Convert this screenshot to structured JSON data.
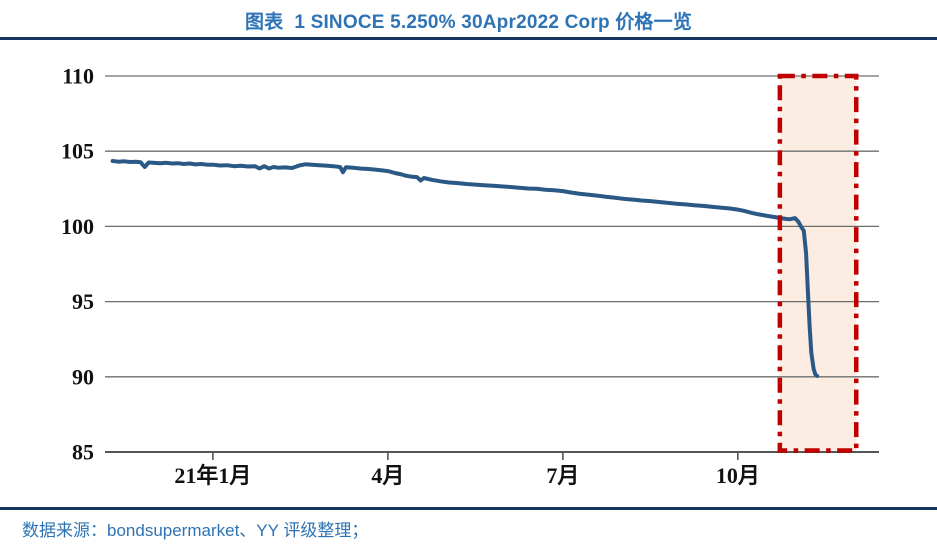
{
  "header": {
    "title": "图表  1 SINOCE 5.250% 30Apr2022 Corp 价格一览"
  },
  "footer": {
    "source_note": "数据来源：bondsupermarket、YY 评级整理；"
  },
  "colors": {
    "accent_blue": "#2E74B5",
    "rule_navy": "#17365D",
    "line_blue": "#2B5985",
    "grid_gray": "#6E6E6E",
    "axis_gray": "#555555",
    "highlight_fill": "#FBEDE2",
    "highlight_border": "#C00000",
    "tick_label_black": "#111111"
  },
  "chart_data": {
    "type": "line",
    "title": "SINOCE 5.250% 30Apr2022 Corp 价格一览",
    "xlabel": "",
    "ylabel": "",
    "ylim": [
      85,
      110
    ],
    "y_ticks": [
      110,
      105,
      100,
      95,
      90,
      85
    ],
    "grid": "horizontal-only",
    "legend": "none",
    "x_unit": "months since 2021-01-01",
    "x_range_months": [
      -1.85,
      11.42
    ],
    "x_ticks": [
      {
        "m": 0,
        "label": "21年1月"
      },
      {
        "m": 3,
        "label": "4月"
      },
      {
        "m": 6,
        "label": "7月"
      },
      {
        "m": 9,
        "label": "10月"
      }
    ],
    "highlight_box": {
      "x0_m": 9.72,
      "x1_m": 11.03,
      "y0": 85.1,
      "y1": 110,
      "style": "dash-dot",
      "meaning": "price collapse window (late Oct - Nov 2021)"
    },
    "series": [
      {
        "name": "SINOCE 5.250% 30Apr2022 Corp price",
        "points": [
          [
            -1.72,
            104.35
          ],
          [
            -1.62,
            104.3
          ],
          [
            -1.52,
            104.33
          ],
          [
            -1.42,
            104.28
          ],
          [
            -1.32,
            104.3
          ],
          [
            -1.24,
            104.27
          ],
          [
            -1.17,
            103.95
          ],
          [
            -1.1,
            104.25
          ],
          [
            -1.0,
            104.22
          ],
          [
            -0.9,
            104.2
          ],
          [
            -0.8,
            104.23
          ],
          [
            -0.7,
            104.18
          ],
          [
            -0.6,
            104.2
          ],
          [
            -0.5,
            104.15
          ],
          [
            -0.4,
            104.18
          ],
          [
            -0.3,
            104.12
          ],
          [
            -0.2,
            104.15
          ],
          [
            -0.1,
            104.1
          ],
          [
            0.0,
            104.1
          ],
          [
            0.12,
            104.05
          ],
          [
            0.24,
            104.07
          ],
          [
            0.36,
            104.0
          ],
          [
            0.48,
            104.03
          ],
          [
            0.6,
            103.98
          ],
          [
            0.72,
            104.0
          ],
          [
            0.8,
            103.85
          ],
          [
            0.88,
            104.0
          ],
          [
            0.96,
            103.85
          ],
          [
            1.04,
            103.95
          ],
          [
            1.12,
            103.9
          ],
          [
            1.24,
            103.92
          ],
          [
            1.36,
            103.88
          ],
          [
            1.48,
            104.05
          ],
          [
            1.58,
            104.13
          ],
          [
            1.7,
            104.1
          ],
          [
            1.82,
            104.07
          ],
          [
            1.94,
            104.04
          ],
          [
            2.06,
            104.0
          ],
          [
            2.18,
            103.95
          ],
          [
            2.23,
            103.6
          ],
          [
            2.28,
            103.93
          ],
          [
            2.4,
            103.9
          ],
          [
            2.52,
            103.85
          ],
          [
            2.64,
            103.82
          ],
          [
            2.76,
            103.78
          ],
          [
            2.88,
            103.74
          ],
          [
            3.0,
            103.68
          ],
          [
            3.12,
            103.55
          ],
          [
            3.24,
            103.45
          ],
          [
            3.3,
            103.38
          ],
          [
            3.42,
            103.3
          ],
          [
            3.5,
            103.28
          ],
          [
            3.56,
            103.05
          ],
          [
            3.62,
            103.22
          ],
          [
            3.75,
            103.1
          ],
          [
            3.9,
            103.0
          ],
          [
            4.05,
            102.92
          ],
          [
            4.2,
            102.88
          ],
          [
            4.35,
            102.82
          ],
          [
            4.5,
            102.78
          ],
          [
            4.65,
            102.73
          ],
          [
            4.8,
            102.7
          ],
          [
            4.95,
            102.66
          ],
          [
            5.1,
            102.62
          ],
          [
            5.25,
            102.57
          ],
          [
            5.4,
            102.52
          ],
          [
            5.55,
            102.5
          ],
          [
            5.7,
            102.44
          ],
          [
            5.85,
            102.4
          ],
          [
            6.0,
            102.35
          ],
          [
            6.15,
            102.25
          ],
          [
            6.3,
            102.16
          ],
          [
            6.45,
            102.1
          ],
          [
            6.6,
            102.04
          ],
          [
            6.75,
            101.96
          ],
          [
            6.9,
            101.9
          ],
          [
            7.05,
            101.83
          ],
          [
            7.2,
            101.78
          ],
          [
            7.35,
            101.72
          ],
          [
            7.5,
            101.68
          ],
          [
            7.65,
            101.62
          ],
          [
            7.8,
            101.56
          ],
          [
            7.95,
            101.5
          ],
          [
            8.1,
            101.46
          ],
          [
            8.25,
            101.4
          ],
          [
            8.4,
            101.36
          ],
          [
            8.55,
            101.3
          ],
          [
            8.7,
            101.25
          ],
          [
            8.85,
            101.2
          ],
          [
            9.0,
            101.12
          ],
          [
            9.12,
            101.02
          ],
          [
            9.24,
            100.9
          ],
          [
            9.36,
            100.8
          ],
          [
            9.48,
            100.72
          ],
          [
            9.58,
            100.65
          ],
          [
            9.66,
            100.6
          ],
          [
            9.74,
            100.55
          ],
          [
            9.82,
            100.5
          ],
          [
            9.9,
            100.48
          ],
          [
            9.98,
            100.55
          ],
          [
            10.04,
            100.3
          ],
          [
            10.09,
            99.95
          ],
          [
            10.13,
            99.7
          ],
          [
            10.17,
            98.2
          ],
          [
            10.2,
            95.8
          ],
          [
            10.23,
            93.4
          ],
          [
            10.26,
            91.6
          ],
          [
            10.3,
            90.5
          ],
          [
            10.33,
            90.15
          ],
          [
            10.36,
            90.05
          ]
        ]
      }
    ]
  }
}
